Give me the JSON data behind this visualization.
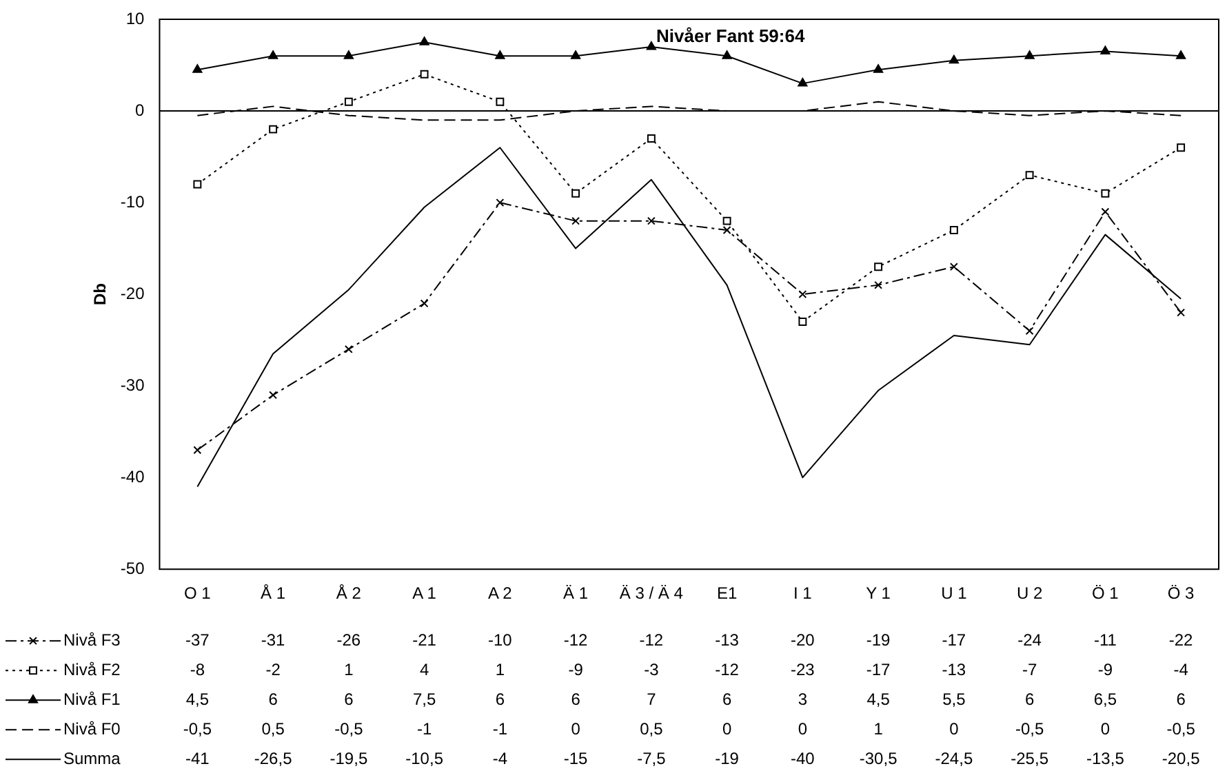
{
  "chart_data": {
    "type": "line",
    "title": "Nivåer Fant 59:64",
    "ylabel": "Db",
    "categories": [
      "O 1",
      "Å 1",
      "Å 2",
      "A 1",
      "A 2",
      "Ä 1",
      "Ä 3 / Ä 4",
      "E1",
      "I 1",
      "Y 1",
      "U 1",
      "U 2",
      "Ö 1",
      "Ö 3"
    ],
    "ylim": [
      -50,
      10
    ],
    "yticks": [
      -50,
      -40,
      -30,
      -20,
      -10,
      0,
      10
    ],
    "grid": false,
    "legend": "bottom left",
    "ref_lines": [
      {
        "axis": "y",
        "value": 0,
        "color": "#000000"
      }
    ],
    "series": [
      {
        "name": "Nivå F3",
        "color": "#000000",
        "marker": "cross",
        "line_style": "dashdot",
        "values": [
          -37,
          -31,
          -26,
          -21,
          -10,
          -12,
          -12,
          -13,
          -20,
          -19,
          -17,
          -24,
          -11,
          -22
        ],
        "value_labels": [
          "-37",
          "-31",
          "-26",
          "-21",
          "-10",
          "-12",
          "-12",
          "-13",
          "-20",
          "-19",
          "-17",
          "-24",
          "-11",
          "-22"
        ]
      },
      {
        "name": "Nivå F2",
        "color": "#000000",
        "marker": "square",
        "line_style": "dotted",
        "values": [
          -8,
          -2,
          1,
          4,
          1,
          -9,
          -3,
          -12,
          -23,
          -17,
          -13,
          -7,
          -9,
          -4
        ],
        "value_labels": [
          "-8",
          "-2",
          "1",
          "4",
          "1",
          "-9",
          "-3",
          "-12",
          "-23",
          "-17",
          "-13",
          "-7",
          "-9",
          "-4"
        ]
      },
      {
        "name": "Nivå F1",
        "color": "#000000",
        "marker": "triangle",
        "line_style": "solid",
        "values": [
          4.5,
          6,
          6,
          7.5,
          6,
          6,
          7,
          6,
          3,
          4.5,
          5.5,
          6,
          6.5,
          6
        ],
        "value_labels": [
          "4,5",
          "6",
          "6",
          "7,5",
          "6",
          "6",
          "7",
          "6",
          "3",
          "4,5",
          "5,5",
          "6",
          "6,5",
          "6"
        ]
      },
      {
        "name": "Nivå F0",
        "color": "#000000",
        "marker": "none",
        "line_style": "dashed",
        "values": [
          -0.5,
          0.5,
          -0.5,
          -1,
          -1,
          0,
          0.5,
          0,
          0,
          1,
          0,
          -0.5,
          0,
          -0.5
        ],
        "value_labels": [
          "-0,5",
          "0,5",
          "-0,5",
          "-1",
          "-1",
          "0",
          "0,5",
          "0",
          "0",
          "1",
          "0",
          "-0,5",
          "0",
          "-0,5"
        ]
      },
      {
        "name": "Summa",
        "color": "#000000",
        "marker": "none",
        "line_style": "solid",
        "values": [
          -41,
          -26.5,
          -19.5,
          -10.5,
          -4,
          -15,
          -7.5,
          -19,
          -40,
          -30.5,
          -24.5,
          -25.5,
          -13.5,
          -20.5
        ],
        "value_labels": [
          "-41",
          "-26,5",
          "-19,5",
          "-10,5",
          "-4",
          "-15",
          "-7,5",
          "-19",
          "-40",
          "-30,5",
          "-24,5",
          "-25,5",
          "-13,5",
          "-20,5"
        ]
      }
    ]
  }
}
